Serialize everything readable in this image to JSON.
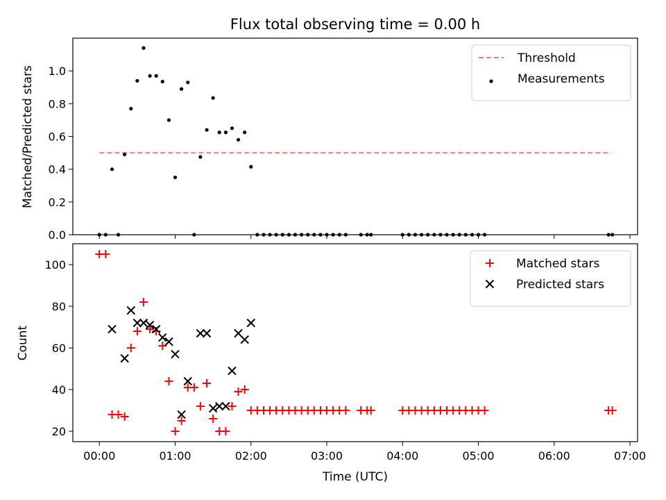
{
  "chart_data": [
    {
      "type": "scatter",
      "title": "Flux total observing time = 0.00 h",
      "ylabel": "Matched/Predicted stars",
      "xlabel": "",
      "xlim": [
        -0.35,
        7.1
      ],
      "ylim": [
        0.0,
        1.2
      ],
      "yticks": [
        0.0,
        0.2,
        0.4,
        0.6,
        0.8,
        1.0
      ],
      "ytick_labels": [
        "0.0",
        "0.2",
        "0.4",
        "0.6",
        "0.8",
        "1.0"
      ],
      "xticks": [
        0,
        1,
        2,
        3,
        4,
        5,
        6,
        7
      ],
      "show_xtick_labels": false,
      "legend": {
        "position": "top-right",
        "entries": [
          {
            "label": "Threshold",
            "kind": "dashed-line",
            "color": "#ff7b7b"
          },
          {
            "label": "Measurements",
            "kind": "dot",
            "color": "#000000"
          }
        ]
      },
      "threshold": {
        "name": "Threshold",
        "y": 0.5,
        "x_start": 0.0,
        "x_end": 6.75,
        "color": "#ff7b7b",
        "style": "dashed"
      },
      "series": [
        {
          "name": "Measurements",
          "marker": "dot",
          "color": "#000000",
          "points": [
            [
              0.0,
              0.0
            ],
            [
              0.083,
              0.0
            ],
            [
              0.167,
              0.4
            ],
            [
              0.25,
              0.0
            ],
            [
              0.333,
              0.49
            ],
            [
              0.417,
              0.77
            ],
            [
              0.5,
              0.94
            ],
            [
              0.583,
              1.14
            ],
            [
              0.667,
              0.97
            ],
            [
              0.75,
              0.97
            ],
            [
              0.833,
              0.935
            ],
            [
              0.917,
              0.7
            ],
            [
              1.0,
              0.35
            ],
            [
              1.083,
              0.89
            ],
            [
              1.167,
              0.93
            ],
            [
              1.25,
              0.0
            ],
            [
              1.333,
              0.475
            ],
            [
              1.417,
              0.64
            ],
            [
              1.5,
              0.835
            ],
            [
              1.583,
              0.625
            ],
            [
              1.667,
              0.625
            ],
            [
              1.75,
              0.65
            ],
            [
              1.833,
              0.58
            ],
            [
              1.917,
              0.625
            ],
            [
              2.0,
              0.415
            ],
            [
              2.083,
              0.0
            ],
            [
              2.167,
              0.0
            ],
            [
              2.25,
              0.0
            ],
            [
              2.333,
              0.0
            ],
            [
              2.417,
              0.0
            ],
            [
              2.5,
              0.0
            ],
            [
              2.583,
              0.0
            ],
            [
              2.667,
              0.0
            ],
            [
              2.75,
              0.0
            ],
            [
              2.833,
              0.0
            ],
            [
              2.917,
              0.0
            ],
            [
              3.0,
              0.0
            ],
            [
              3.083,
              0.0
            ],
            [
              3.167,
              0.0
            ],
            [
              3.25,
              0.0
            ],
            [
              3.45,
              0.0
            ],
            [
              3.533,
              0.0
            ],
            [
              3.583,
              0.0
            ],
            [
              4.0,
              0.0
            ],
            [
              4.083,
              0.0
            ],
            [
              4.167,
              0.0
            ],
            [
              4.25,
              0.0
            ],
            [
              4.333,
              0.0
            ],
            [
              4.417,
              0.0
            ],
            [
              4.5,
              0.0
            ],
            [
              4.583,
              0.0
            ],
            [
              4.667,
              0.0
            ],
            [
              4.75,
              0.0
            ],
            [
              4.833,
              0.0
            ],
            [
              4.917,
              0.0
            ],
            [
              5.0,
              0.0
            ],
            [
              5.083,
              0.0
            ],
            [
              6.717,
              0.0
            ],
            [
              6.767,
              0.0
            ]
          ]
        }
      ]
    },
    {
      "type": "scatter",
      "title": "",
      "ylabel": "Count",
      "xlabel": "Time (UTC)",
      "xlim": [
        -0.35,
        7.1
      ],
      "ylim": [
        15,
        110
      ],
      "yticks": [
        20,
        40,
        60,
        80,
        100
      ],
      "ytick_labels": [
        "20",
        "40",
        "60",
        "80",
        "100"
      ],
      "xticks": [
        0,
        1,
        2,
        3,
        4,
        5,
        6,
        7
      ],
      "xtick_labels": [
        "00:00",
        "01:00",
        "02:00",
        "03:00",
        "04:00",
        "05:00",
        "06:00",
        "07:00"
      ],
      "legend": {
        "position": "top-right",
        "entries": [
          {
            "label": "Matched stars",
            "kind": "plus",
            "color": "#ff0000"
          },
          {
            "label": "Predicted stars",
            "kind": "cross",
            "color": "#000000"
          }
        ]
      },
      "series": [
        {
          "name": "Matched stars",
          "marker": "plus",
          "color": "#ff0000",
          "points": [
            [
              0.0,
              105
            ],
            [
              0.083,
              105
            ],
            [
              0.167,
              28
            ],
            [
              0.25,
              28
            ],
            [
              0.333,
              27
            ],
            [
              0.417,
              60
            ],
            [
              0.5,
              68
            ],
            [
              0.583,
              82
            ],
            [
              0.667,
              69
            ],
            [
              0.75,
              68
            ],
            [
              0.833,
              61
            ],
            [
              0.917,
              44
            ],
            [
              1.0,
              20
            ],
            [
              1.083,
              25
            ],
            [
              1.167,
              41
            ],
            [
              1.25,
              41
            ],
            [
              1.333,
              32
            ],
            [
              1.417,
              43
            ],
            [
              1.5,
              26
            ],
            [
              1.583,
              20
            ],
            [
              1.667,
              20
            ],
            [
              1.75,
              32
            ],
            [
              1.833,
              39
            ],
            [
              1.917,
              40
            ],
            [
              2.0,
              30
            ],
            [
              2.083,
              30
            ],
            [
              2.167,
              30
            ],
            [
              2.25,
              30
            ],
            [
              2.333,
              30
            ],
            [
              2.417,
              30
            ],
            [
              2.5,
              30
            ],
            [
              2.583,
              30
            ],
            [
              2.667,
              30
            ],
            [
              2.75,
              30
            ],
            [
              2.833,
              30
            ],
            [
              2.917,
              30
            ],
            [
              3.0,
              30
            ],
            [
              3.083,
              30
            ],
            [
              3.167,
              30
            ],
            [
              3.25,
              30
            ],
            [
              3.45,
              30
            ],
            [
              3.533,
              30
            ],
            [
              3.583,
              30
            ],
            [
              4.0,
              30
            ],
            [
              4.083,
              30
            ],
            [
              4.167,
              30
            ],
            [
              4.25,
              30
            ],
            [
              4.333,
              30
            ],
            [
              4.417,
              30
            ],
            [
              4.5,
              30
            ],
            [
              4.583,
              30
            ],
            [
              4.667,
              30
            ],
            [
              4.75,
              30
            ],
            [
              4.833,
              30
            ],
            [
              4.917,
              30
            ],
            [
              5.0,
              30
            ],
            [
              5.083,
              30
            ],
            [
              6.717,
              30
            ],
            [
              6.767,
              30
            ]
          ]
        },
        {
          "name": "Predicted stars",
          "marker": "cross",
          "color": "#000000",
          "points": [
            [
              0.167,
              69
            ],
            [
              0.333,
              55
            ],
            [
              0.417,
              78
            ],
            [
              0.5,
              72
            ],
            [
              0.583,
              72
            ],
            [
              0.667,
              71
            ],
            [
              0.75,
              69
            ],
            [
              0.833,
              65
            ],
            [
              0.917,
              63
            ],
            [
              1.0,
              57
            ],
            [
              1.083,
              28
            ],
            [
              1.167,
              44
            ],
            [
              1.333,
              67
            ],
            [
              1.417,
              67
            ],
            [
              1.5,
              31
            ],
            [
              1.583,
              32
            ],
            [
              1.667,
              32
            ],
            [
              1.75,
              49
            ],
            [
              1.833,
              67
            ],
            [
              1.917,
              64
            ],
            [
              2.0,
              72
            ]
          ]
        }
      ]
    }
  ]
}
